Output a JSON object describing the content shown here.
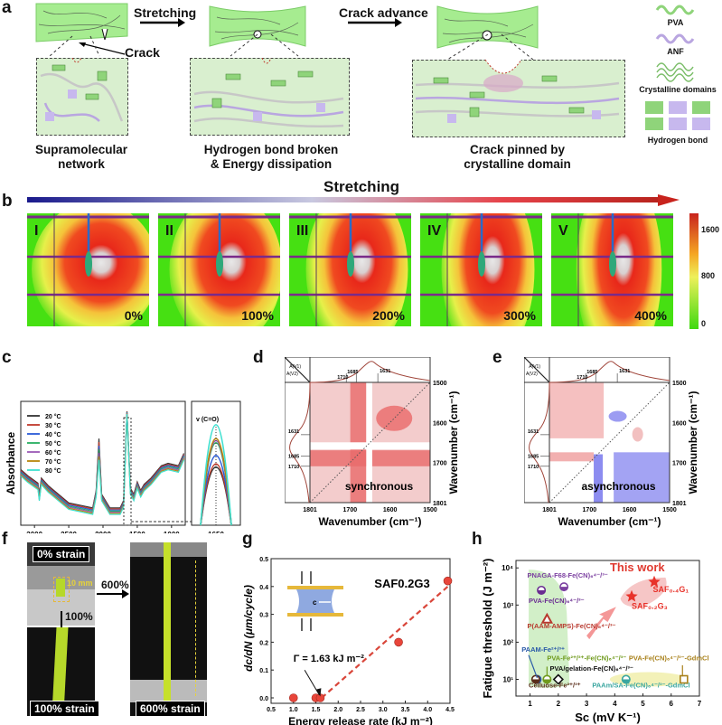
{
  "panels": {
    "a": {
      "label": "a",
      "arrow1": "Stretching",
      "arrow2": "Crack advance",
      "crack_label": "Crack",
      "captions": [
        "Supramolecular network",
        "Hydrogen bond broken & Energy dissipation",
        "Crack pinned by crystalline domain"
      ],
      "caption_lines": [
        [
          "Supramolecular",
          "network"
        ],
        [
          "Hydrogen bond broken",
          "& Energy dissipation"
        ],
        [
          "Crack pinned by",
          "crystalline domain"
        ]
      ],
      "legend": [
        "PVA",
        "ANF",
        "Crystalline domains",
        "Hydrogen bond"
      ],
      "colors": {
        "gel": "#9ee88a",
        "pva": "#8fd47a",
        "anf": "#b9a6e0",
        "box": "#d9efcf"
      }
    },
    "b": {
      "label": "b",
      "title": "Stretching",
      "frames": [
        {
          "roman": "I",
          "strain": "0%"
        },
        {
          "roman": "II",
          "strain": "100%"
        },
        {
          "roman": "III",
          "strain": "200%"
        },
        {
          "roman": "IV",
          "strain": "300%"
        },
        {
          "roman": "V",
          "strain": "400%"
        }
      ],
      "colorbar": {
        "ticks": [
          "1600",
          "800",
          "0"
        ],
        "max": 1600,
        "min": 0
      },
      "colors": {
        "start": "#1a1a8c",
        "end": "#c8231d"
      }
    },
    "c": {
      "label": "c"
    },
    "d": {
      "label": "d"
    },
    "e": {
      "label": "e"
    },
    "f": {
      "label": "f",
      "tags": [
        "0% strain",
        "100% strain",
        "600% strain"
      ],
      "dim": "10 mm",
      "step1": "100%",
      "step2": "600%"
    },
    "g": {
      "label": "g"
    },
    "h": {
      "label": "h"
    }
  },
  "chart_data": [
    {
      "panel": "c",
      "type": "line",
      "title": "",
      "xlabel": "Wavenumber (cm⁻¹)",
      "ylabel": "Absorbance",
      "xlim": [
        3200,
        800
      ],
      "xticks": [
        "3000",
        "2500",
        "2000",
        "1500",
        "1000"
      ],
      "inset": {
        "xticks": [
          "1650"
        ],
        "annotation": "v (C=O)"
      },
      "legend": "top-left",
      "series": [
        {
          "name": "20 °C",
          "color": "#333333",
          "peak": 0.55
        },
        {
          "name": "30 °C",
          "color": "#c0392b",
          "peak": 0.58
        },
        {
          "name": "40 °C",
          "color": "#2a5bd7",
          "peak": 0.66
        },
        {
          "name": "50 °C",
          "color": "#27ae60",
          "peak": 0.78
        },
        {
          "name": "60 °C",
          "color": "#9b59b6",
          "peak": 0.8
        },
        {
          "name": "70 °C",
          "color": "#b8860b",
          "peak": 0.82
        },
        {
          "name": "80 °C",
          "color": "#40e0d0",
          "peak": 0.95
        }
      ]
    },
    {
      "panel": "d",
      "type": "heatmap",
      "mode": "synchronous",
      "xlabel": "Wavenumber (cm⁻¹)",
      "ylabel": "Wavenumber (cm⁻¹)",
      "xticks": [
        "1801",
        "1700",
        "1600",
        "1500"
      ],
      "yticks": [
        "1500",
        "1600",
        "1700",
        "1801"
      ],
      "corner": [
        "A(V1)",
        "A(V2)"
      ],
      "peaks": [
        "1710",
        "1685",
        "1631"
      ]
    },
    {
      "panel": "e",
      "type": "heatmap",
      "mode": "asynchronous",
      "xlabel": "Wavenumber (cm⁻¹)",
      "ylabel": "Wavenumber (cm⁻¹)",
      "xticks": [
        "1801",
        "1700",
        "1600",
        "1500"
      ],
      "yticks": [
        "1500",
        "1600",
        "1700",
        "1801"
      ],
      "corner": [
        "A(V1)",
        "A(V2)"
      ],
      "peaks": [
        "1710",
        "1685",
        "1631"
      ]
    },
    {
      "panel": "g",
      "type": "scatter",
      "title": "SAF0.2G3",
      "xlabel": "Energy release rate (kJ m⁻²)",
      "ylabel": "dc/dN (μm/cycle)",
      "xlim": [
        0.5,
        4.5
      ],
      "ylim": [
        0,
        0.5
      ],
      "xticks": [
        "0.5",
        "1.0",
        "1.5",
        "2.0",
        "2.5",
        "3.0",
        "3.5",
        "4.0",
        "4.5"
      ],
      "yticks": [
        "0.0",
        "0.1",
        "0.2",
        "0.3",
        "0.4",
        "0.5"
      ],
      "points": [
        [
          1.0,
          0.0
        ],
        [
          1.5,
          0.0
        ],
        [
          1.6,
          0.0
        ],
        [
          3.35,
          0.2
        ],
        [
          4.45,
          0.42
        ]
      ],
      "fit": [
        [
          1.63,
          0.0
        ],
        [
          4.45,
          0.4
        ]
      ],
      "annotation": "Γ = 1.63 kJ m⁻²",
      "inset_label": "c"
    },
    {
      "panel": "h",
      "type": "scatter",
      "xlabel": "Sc (mV K⁻¹)",
      "ylabel": "Fatigue threshold (J m⁻²)",
      "xlim": [
        0.5,
        7
      ],
      "ylim_log": [
        1,
        4
      ],
      "xticks": [
        "1",
        "2",
        "3",
        "4",
        "5",
        "6",
        "7"
      ],
      "yticks": [
        "10¹",
        "10²",
        "10³",
        "10⁴"
      ],
      "title_annotation": "This work",
      "points": [
        {
          "name": "PNAGA-F68-Fe(CN)6 4-/3-",
          "x": 2.2,
          "y": 3100,
          "color": "#7b3fa0",
          "label": "PNAGA-F68-Fe(CN)₆⁴⁻/³⁻"
        },
        {
          "name": "PVA-Fe(CN)6 4-/3-",
          "x": 1.4,
          "y": 2500,
          "color": "#6a2c91",
          "label": "PVA-Fe(CN)₆⁴⁻/³⁻"
        },
        {
          "name": "P(AAM-AMPS)-Fe(CN)6 4-/3-",
          "x": 1.6,
          "y": 420,
          "color": "#b8392e",
          "label": "P(AAM-AMPS)-Fe(CN)₆⁴⁻/³⁻"
        },
        {
          "name": "PAAM-Fe2+/3+",
          "x": 1.25,
          "y": 10,
          "color": "#2a5aa8",
          "label": "PAAM-Fe²⁺/³⁺"
        },
        {
          "name": "Celluose-Fe2+/3+",
          "x": 1.2,
          "y": 10,
          "color": "#5a2d1a",
          "label": "Celluose-Fe²⁺/³⁺"
        },
        {
          "name": "PVA-Fe2+/3+-Fe(CN)6 4-/3-",
          "x": 1.6,
          "y": 10,
          "color": "#6f9a1c",
          "label": "PVA-Fe²⁺/³⁺-Fe(CN)₆⁴⁻/³⁻"
        },
        {
          "name": "PVA/gelation-Fe(CN)6 4-/3-",
          "x": 2.0,
          "y": 10,
          "color": "#111111",
          "label": "PVA/gelation-Fe(CN)₆⁴⁻/³⁻"
        },
        {
          "name": "PAAm/SA-Fe(CN)6 4-/3--GdmCl",
          "x": 4.4,
          "y": 10,
          "color": "#3aa6a0",
          "label": "PAAm/SA-Fe(CN)₆⁴⁻/³⁻-GdmCl"
        },
        {
          "name": "PVA-Fe(CN)6 4-/3--GdmCl",
          "x": 6.45,
          "y": 10,
          "color": "#a8801a",
          "label": "PVA-Fe(CN)₆⁴⁻/³⁻-GdmCl"
        },
        {
          "name": "SAF0.2G3",
          "x": 4.6,
          "y": 1700,
          "color": "#e8322a",
          "label": "SAF₀.₂G₃"
        },
        {
          "name": "SAF0.4G1",
          "x": 5.4,
          "y": 4200,
          "color": "#e8322a",
          "label": "SAF₀.₄G₁"
        }
      ]
    }
  ]
}
